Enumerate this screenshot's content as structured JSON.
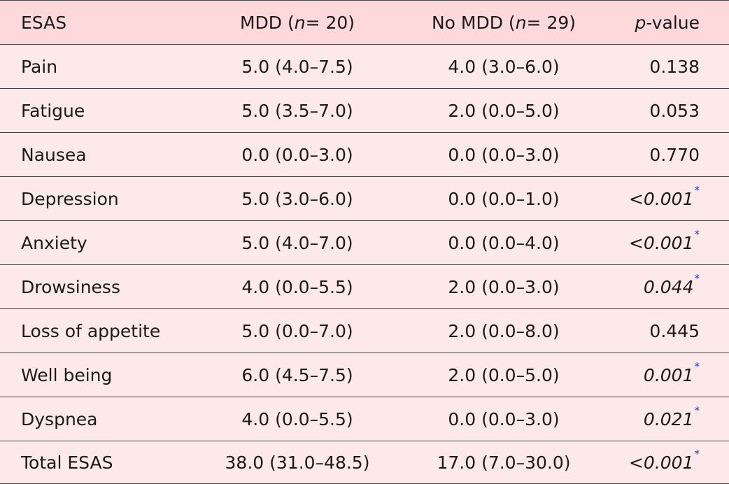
{
  "header": {
    "col0": "ESAS",
    "col1_pre": "MDD (",
    "col1_n": "n",
    "col1_eq": " = 20)",
    "col2_pre": "No MDD (",
    "col2_n": "n",
    "col2_eq": " = 29)",
    "col3_p": "p",
    "col3_rest": "-value"
  },
  "rows": [
    {
      "label": "Pain",
      "mdd": "5.0 (4.0–7.5)",
      "no_mdd": "4.0 (3.0–6.0)",
      "p_prefix": "",
      "p": "0.138",
      "sig": false
    },
    {
      "label": "Fatigue",
      "mdd": "5.0 (3.5–7.0)",
      "no_mdd": "2.0 (0.0–5.0)",
      "p_prefix": "",
      "p": "0.053",
      "sig": false
    },
    {
      "label": "Nausea",
      "mdd": "0.0 (0.0–3.0)",
      "no_mdd": "0.0 (0.0–3.0)",
      "p_prefix": "",
      "p": "0.770",
      "sig": false
    },
    {
      "label": "Depression",
      "mdd": "5.0 (3.0–6.0)",
      "no_mdd": "0.0 (0.0–1.0)",
      "p_prefix": "<",
      "p": "0.001",
      "sig": true
    },
    {
      "label": "Anxiety",
      "mdd": "5.0 (4.0–7.0)",
      "no_mdd": "0.0 (0.0–4.0)",
      "p_prefix": "<",
      "p": "0.001",
      "sig": true
    },
    {
      "label": "Drowsiness",
      "mdd": "4.0 (0.0–5.5)",
      "no_mdd": "2.0 (0.0–3.0)",
      "p_prefix": "",
      "p": "0.044",
      "sig": true
    },
    {
      "label": "Loss of appetite",
      "mdd": "5.0 (0.0–7.0)",
      "no_mdd": "2.0 (0.0–8.0)",
      "p_prefix": "",
      "p": "0.445",
      "sig": false
    },
    {
      "label": "Well being",
      "mdd": "6.0 (4.5–7.5)",
      "no_mdd": "2.0 (0.0–5.0)",
      "p_prefix": "",
      "p": "0.001",
      "sig": true
    },
    {
      "label": "Dyspnea",
      "mdd": "4.0 (0.0–5.5)",
      "no_mdd": "0.0 (0.0–3.0)",
      "p_prefix": "",
      "p": "0.021",
      "sig": true
    },
    {
      "label": "Total ESAS",
      "mdd": "38.0 (31.0–48.5)",
      "no_mdd": "17.0 (7.0–30.0)",
      "p_prefix": "<",
      "p": "0.001",
      "sig": true
    }
  ],
  "sig_marker": "*",
  "colors": {
    "header_bg": "#fdd9db",
    "row_bg": "#fde9ea",
    "asterisk": "#1a3ccf",
    "rule": "#444444"
  }
}
